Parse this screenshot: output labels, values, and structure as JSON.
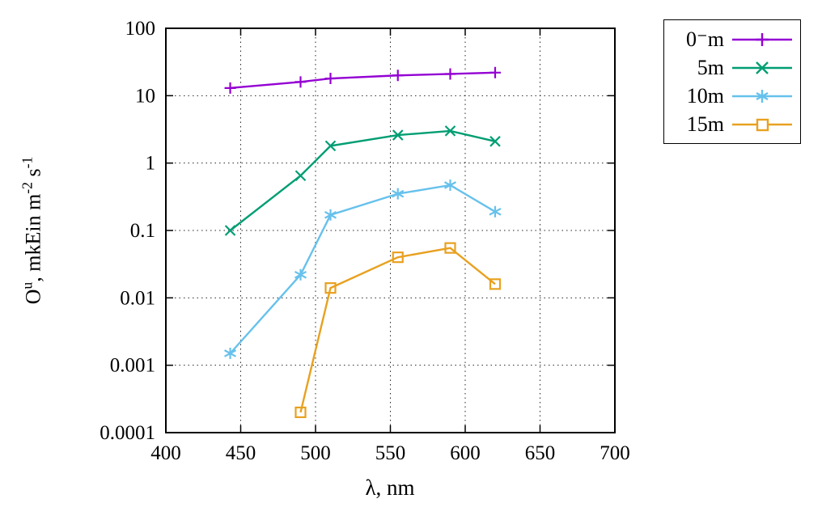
{
  "figure": {
    "ylabel_o": "O",
    "ylabel_sup_u": "u",
    "ylabel_mid": ", mkEin m",
    "ylabel_sup_m2": "-2",
    "ylabel_s": " s",
    "ylabel_sup_s1": "-1"
  },
  "chart_data": {
    "type": "line",
    "title": "",
    "xlabel": "λ, nm",
    "ylabel": "O^u, mkEin m^-2 s^-1",
    "x_range": [
      400,
      700
    ],
    "x_ticks": [
      "400",
      "450",
      "500",
      "550",
      "600",
      "650",
      "700"
    ],
    "y_scale": "log",
    "y_range": [
      0.0001,
      100
    ],
    "y_ticks": [
      "100",
      "10",
      "1",
      "0.1",
      "0.01",
      "0.001",
      "0.0001"
    ],
    "grid": true,
    "legend_position": "top-right-outside",
    "series": [
      {
        "name": "0⁻m",
        "color": "#9400d3",
        "marker": "plus",
        "x": [
          443,
          490,
          510,
          555,
          590,
          620
        ],
        "y": [
          13,
          16,
          18,
          20,
          21,
          22
        ]
      },
      {
        "name": "5m",
        "color": "#009e73",
        "marker": "x",
        "x": [
          443,
          490,
          510,
          555,
          590,
          620
        ],
        "y": [
          0.1,
          0.65,
          1.8,
          2.6,
          3.0,
          2.1
        ]
      },
      {
        "name": "10m",
        "color": "#67c1ec",
        "marker": "asterisk",
        "x": [
          443,
          490,
          510,
          555,
          590,
          620
        ],
        "y": [
          0.0015,
          0.022,
          0.17,
          0.35,
          0.47,
          0.19
        ]
      },
      {
        "name": "15m",
        "color": "#e8a120",
        "marker": "square",
        "x": [
          490,
          510,
          555,
          590,
          620
        ],
        "y": [
          0.0002,
          0.014,
          0.04,
          0.055,
          0.016
        ]
      }
    ]
  }
}
